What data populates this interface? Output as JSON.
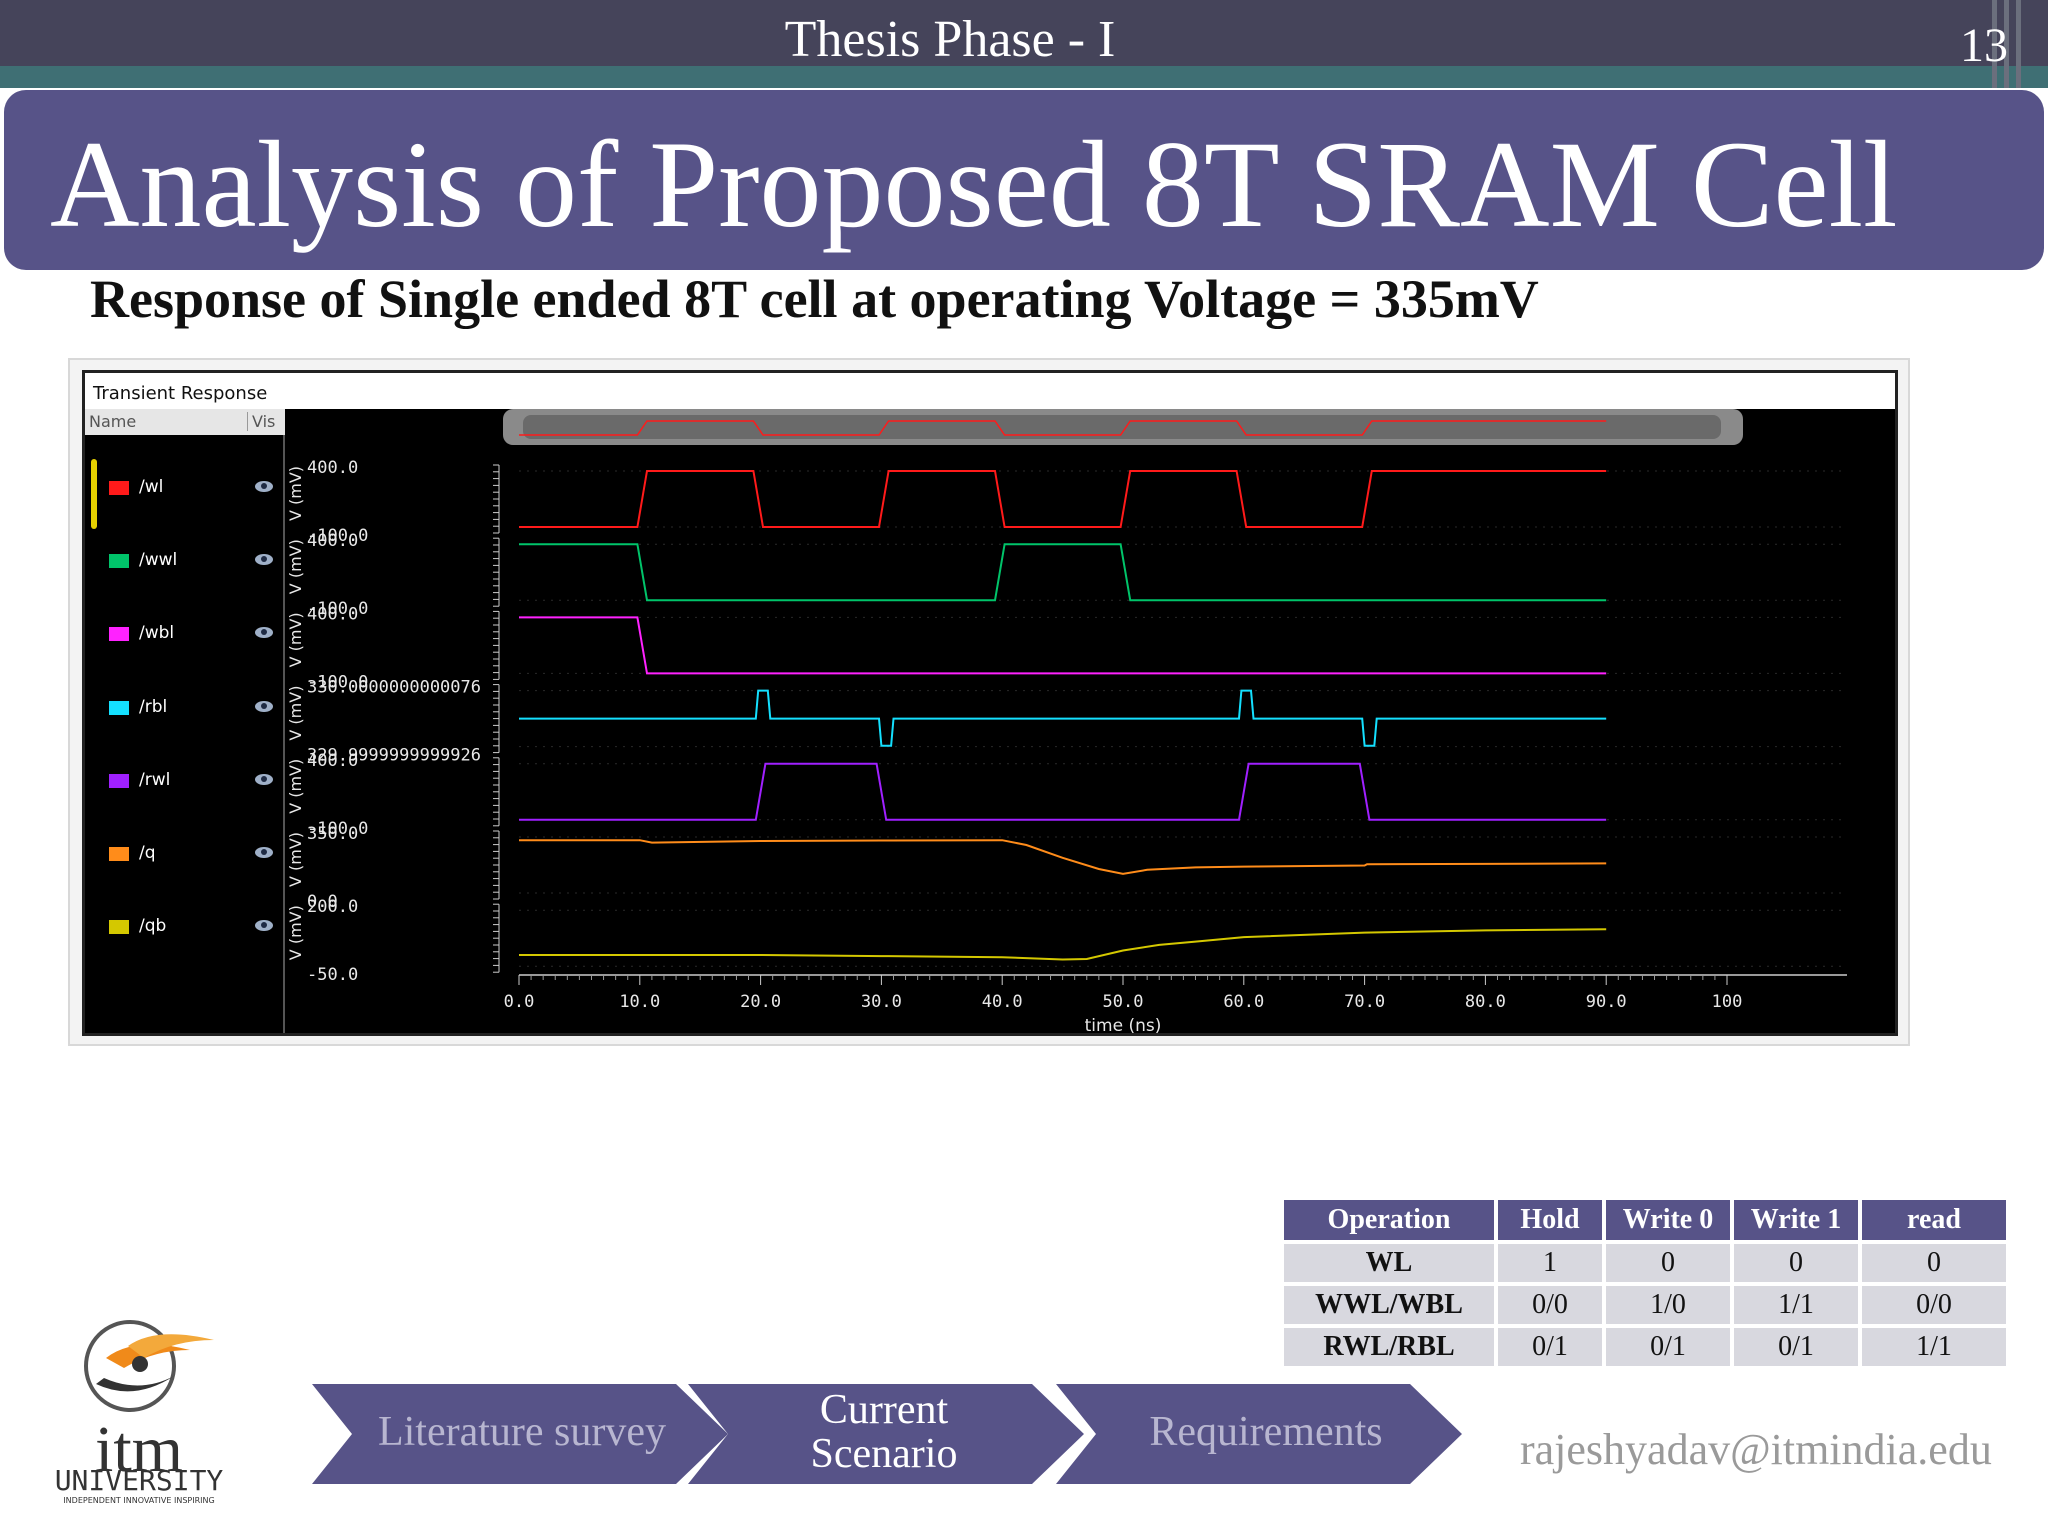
{
  "header": {
    "phase": "Thesis Phase - I",
    "slide_number": "13"
  },
  "title": "Analysis of Proposed 8T SRAM Cell",
  "subtitle": "Response of Single ended 8T cell at operating Voltage = 335mV",
  "waveform_window": {
    "title": "Transient Response",
    "col_name": "Name",
    "col_vis": "Vis",
    "signals": [
      {
        "name": "/wl",
        "color": "#ff1a1a"
      },
      {
        "name": "/wwl",
        "color": "#00c46a"
      },
      {
        "name": "/wbl",
        "color": "#ff22ff"
      },
      {
        "name": "/rbl",
        "color": "#14e0ff"
      },
      {
        "name": "/rwl",
        "color": "#a020ff"
      },
      {
        "name": "/q",
        "color": "#ff8c1a"
      },
      {
        "name": "/qb",
        "color": "#d4c800"
      }
    ]
  },
  "chart_data": {
    "type": "line",
    "title": "Transient Response",
    "xlabel": "time (ns)",
    "ylabel": "V (mV)",
    "xlim": [
      0,
      100
    ],
    "x_ticks": [
      "0.0",
      "10.0",
      "20.0",
      "30.0",
      "40.0",
      "50.0",
      "60.0",
      "70.0",
      "80.0",
      "90.0",
      "100"
    ],
    "series": [
      {
        "name": "/wl",
        "color": "#ff1a1a",
        "ylim": [
          -100,
          400
        ],
        "y_tick_labels": [
          "400.0",
          "-100.0"
        ],
        "x": [
          0,
          9.8,
          10.6,
          19.4,
          20.2,
          29.8,
          30.6,
          39.4,
          40.2,
          49.8,
          50.6,
          59.4,
          60.2,
          69.8,
          70.6,
          90
        ],
        "y": [
          -100,
          -100,
          400,
          400,
          -100,
          -100,
          400,
          400,
          -100,
          -100,
          400,
          400,
          -100,
          -100,
          400,
          400
        ]
      },
      {
        "name": "/wwl",
        "color": "#00c46a",
        "ylim": [
          -100,
          400
        ],
        "y_tick_labels": [
          "400.0",
          "-100.0"
        ],
        "x": [
          0,
          9.8,
          10.6,
          39.4,
          40.2,
          49.8,
          50.6,
          90
        ],
        "y": [
          400,
          400,
          -100,
          -100,
          400,
          400,
          -100,
          -100
        ]
      },
      {
        "name": "/wbl",
        "color": "#ff22ff",
        "ylim": [
          -100,
          400
        ],
        "y_tick_labels": [
          "400.0",
          "-100.0"
        ],
        "x": [
          0,
          9.8,
          10.6,
          90
        ],
        "y": [
          400,
          400,
          -100,
          -100
        ]
      },
      {
        "name": "/rbl",
        "color": "#14e0ff",
        "ylim": [
          329.9999999999924,
          330.0000000000076
        ],
        "y_tick_labels": [
          "330.0000000000076",
          "329.9999999999926"
        ],
        "x": [
          0,
          19.6,
          19.8,
          20.6,
          20.8,
          29.8,
          30.0,
          30.8,
          31.0,
          59.6,
          59.8,
          60.6,
          60.8,
          69.8,
          70.0,
          70.8,
          71.0,
          90
        ],
        "y": [
          330,
          330,
          330.0000000000076,
          330.0000000000076,
          330,
          330,
          329.9999999999926,
          329.9999999999926,
          330,
          330,
          330.0000000000076,
          330.0000000000076,
          330,
          330,
          329.9999999999926,
          329.9999999999926,
          330,
          330
        ]
      },
      {
        "name": "/rwl",
        "color": "#a020ff",
        "ylim": [
          -100,
          400
        ],
        "y_tick_labels": [
          "400.0",
          "-100.0"
        ],
        "x": [
          0,
          19.6,
          20.4,
          29.6,
          30.4,
          59.6,
          60.4,
          69.6,
          70.4,
          90
        ],
        "y": [
          -100,
          -100,
          400,
          400,
          -100,
          -100,
          400,
          400,
          -100,
          -100
        ]
      },
      {
        "name": "/q",
        "color": "#ff8c1a",
        "ylim": [
          0,
          350
        ],
        "y_tick_labels": [
          "350.0",
          "0.0"
        ],
        "x": [
          0,
          10,
          11,
          20,
          30,
          40,
          42,
          45,
          48,
          50,
          52,
          56,
          60,
          70,
          70.2,
          80,
          90
        ],
        "y": [
          330,
          330,
          315,
          325,
          328,
          330,
          300,
          220,
          150,
          120,
          145,
          160,
          165,
          172,
          180,
          182,
          185
        ]
      },
      {
        "name": "/qb",
        "color": "#d4c800",
        "ylim": [
          -50,
          200
        ],
        "y_tick_labels": [
          "200.0",
          "-50.0"
        ],
        "x": [
          0,
          20,
          30,
          40,
          45,
          47,
          50,
          53,
          56,
          60,
          70,
          80,
          90
        ],
        "y": [
          0,
          0,
          -5,
          -10,
          -20,
          -18,
          20,
          45,
          60,
          80,
          100,
          110,
          115
        ]
      }
    ]
  },
  "table": {
    "headers": [
      "Operation",
      "Hold",
      "Write 0",
      "Write 1",
      "read"
    ],
    "rows": [
      [
        "WL",
        "1",
        "0",
        "0",
        "0"
      ],
      [
        "WWL/WBL",
        "0/0",
        "1/0",
        "1/1",
        "0/0"
      ],
      [
        "RWL/RBL",
        "0/1",
        "0/1",
        "0/1",
        "1/1"
      ]
    ]
  },
  "nav": {
    "items": [
      {
        "label": "Literature survey",
        "state": "inactive"
      },
      {
        "label_line1": "Current",
        "label_line2": "Scenario",
        "state": "active"
      },
      {
        "label": "Requirements",
        "state": "inactive"
      }
    ]
  },
  "footer": {
    "email": "rajeshyadav@itmindia.edu"
  },
  "logo": {
    "brand": "itm",
    "name": "UNIVERSITY",
    "tagline": "INDEPENDENT INNOVATIVE INSPIRING"
  },
  "colors": {
    "accent": "#575388",
    "topbar": "#45445a",
    "plot_bg": "#000000"
  }
}
